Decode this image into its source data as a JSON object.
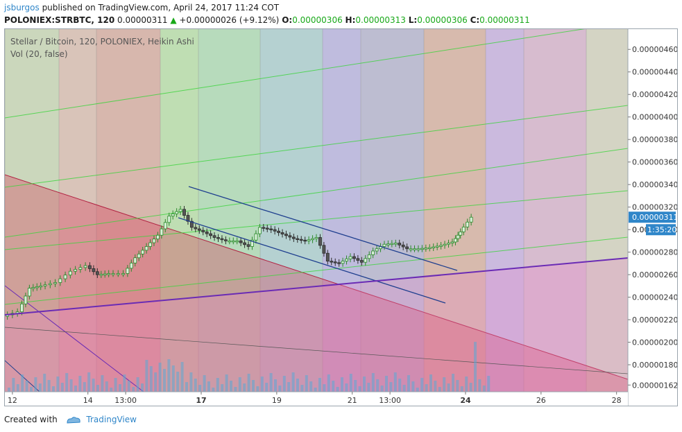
{
  "header": {
    "user": "jsburgos",
    "published_text": " published on TradingView.com, April 24, 2017 11:24 COT",
    "symbol_text": "POLONIEX:STRBTC, 120",
    "last_price": "0.00000311",
    "change_text": "+0.00000026 (+9.12%)",
    "open_label": "O:",
    "open_value": "0.00000306",
    "high_label": "H:",
    "high_value": "0.00000313",
    "low_label": "L:",
    "low_value": "0.00000306",
    "close_label": "C:",
    "close_value": "0.00000311"
  },
  "chart": {
    "title": "Stellar / Bitcoin, 120, POLONIEX, Heikin Ashi",
    "volume_label": "Vol (20, false)"
  },
  "footer": {
    "created_with": "Created with",
    "brand": "TradingView"
  },
  "colors": {
    "up_candle": "#2a8a2a",
    "down_candle": "#2b2b2b",
    "price_badge": "#2f86c9",
    "trend_channel": "#1f3f8f",
    "support_line": "#6a2bb5"
  },
  "chart_data": {
    "type": "candlestick",
    "title": "Stellar / Bitcoin, 120, POLONIEX, Heikin Ashi",
    "indicator": "Vol (20, false)",
    "y_axis": {
      "ticks": [
        "0.00000460",
        "0.00000440",
        "0.00000420",
        "0.00000400",
        "0.00000380",
        "0.00000360",
        "0.00000340",
        "0.00000320",
        "0.00000300",
        "0.00000280",
        "0.00000260",
        "0.00000240",
        "0.00000220",
        "0.00000200",
        "0.00000180",
        "0.00000162"
      ],
      "tick_values": [
        460,
        440,
        420,
        400,
        380,
        360,
        340,
        320,
        300,
        280,
        260,
        240,
        220,
        200,
        180,
        162
      ],
      "range": [
        156,
        478
      ],
      "unit_scale": "1e-8 BTC"
    },
    "x_axis": {
      "ticks": [
        "12",
        "14",
        "13:00",
        "17",
        "19",
        "21",
        "13:00",
        "24",
        "26",
        "28"
      ],
      "tick_days": [
        12,
        14,
        15,
        17,
        19,
        21,
        22,
        24,
        26,
        28
      ],
      "range": [
        11.8,
        28.3
      ]
    },
    "last_price": "0.00000311",
    "countdown": "1:35:20",
    "partial_price_label": "0.0",
    "close_series_day_value": [
      [
        11.8,
        223
      ],
      [
        12.2,
        227
      ],
      [
        12.5,
        248
      ],
      [
        12.8,
        250
      ],
      [
        13.2,
        253
      ],
      [
        13.6,
        263
      ],
      [
        14.0,
        268
      ],
      [
        14.3,
        260
      ],
      [
        14.6,
        261
      ],
      [
        15.0,
        261
      ],
      [
        15.3,
        275
      ],
      [
        15.6,
        285
      ],
      [
        15.9,
        295
      ],
      [
        16.2,
        312
      ],
      [
        16.5,
        318
      ],
      [
        16.8,
        302
      ],
      [
        17.1,
        298
      ],
      [
        17.4,
        293
      ],
      [
        17.7,
        290
      ],
      [
        18.0,
        290
      ],
      [
        18.3,
        285
      ],
      [
        18.6,
        302
      ],
      [
        18.9,
        300
      ],
      [
        19.2,
        296
      ],
      [
        19.5,
        292
      ],
      [
        19.8,
        290
      ],
      [
        20.1,
        293
      ],
      [
        20.4,
        272
      ],
      [
        20.7,
        270
      ],
      [
        21.0,
        276
      ],
      [
        21.3,
        271
      ],
      [
        21.6,
        281
      ],
      [
        21.9,
        287
      ],
      [
        22.2,
        288
      ],
      [
        22.5,
        283
      ],
      [
        22.8,
        283
      ],
      [
        23.1,
        284
      ],
      [
        23.4,
        286
      ],
      [
        23.7,
        289
      ],
      [
        23.9,
        298
      ],
      [
        24.2,
        311
      ]
    ],
    "annotations": [
      {
        "type": "descending channel",
        "color": "#1f3f8f"
      },
      {
        "type": "ascending support line",
        "color": "#6a2bb5"
      },
      {
        "type": "colored time zones"
      },
      {
        "type": "fan lines",
        "color": "#5fd35f"
      }
    ]
  }
}
